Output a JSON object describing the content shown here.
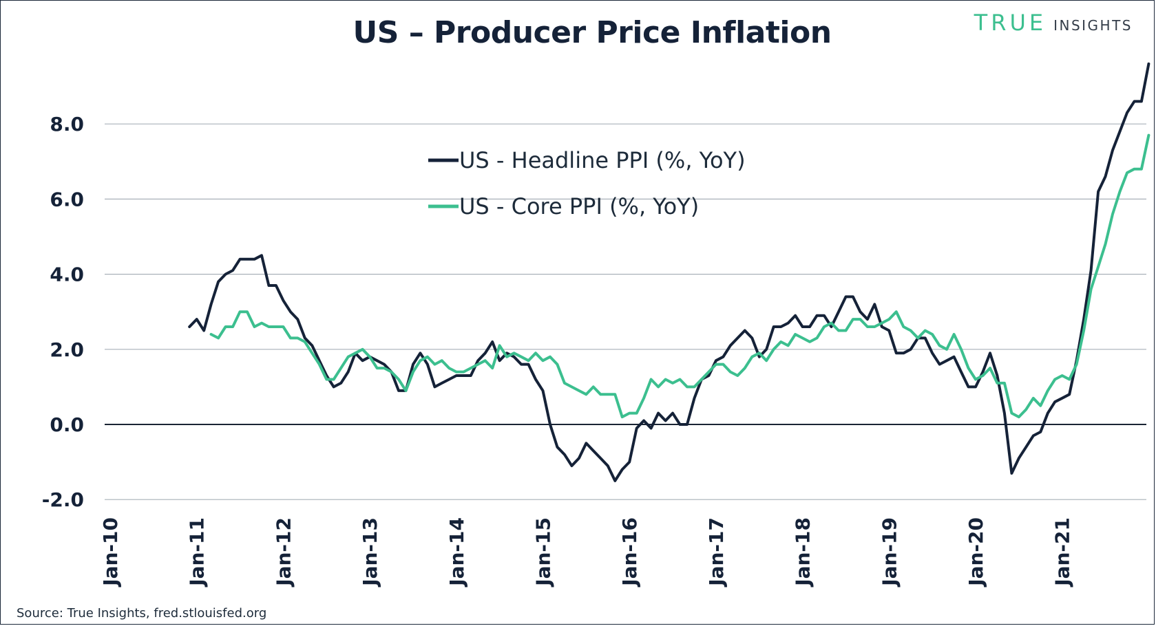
{
  "source": "Source: True Insights, fred.stlouisfed.org",
  "brand": {
    "mark": "TRUE",
    "word": "INSIGHTS",
    "accent": "#3cbf8f"
  },
  "chart_data": {
    "type": "line",
    "title": "US – Producer Price Inflation",
    "xlabel": "",
    "ylabel": "",
    "ylim": [
      -2.0,
      9.6
    ],
    "yticks": [
      -2.0,
      0.0,
      2.0,
      4.0,
      6.0,
      8.0
    ],
    "ytick_labels": [
      "-2.0",
      "0.0",
      "2.0",
      "4.0",
      "6.0",
      "8.0"
    ],
    "xticks": [
      "Jan-10",
      "Jan-11",
      "Jan-12",
      "Jan-13",
      "Jan-14",
      "Jan-15",
      "Jan-16",
      "Jan-17",
      "Jan-18",
      "Jan-19",
      "Jan-20",
      "Jan-21"
    ],
    "x_start": "Jan-10",
    "x_unit": "months since Jan-10",
    "grid": true,
    "legend_position": "top-center",
    "series": [
      {
        "name": "US - Headline PPI (%, YoY)",
        "color": "#152238",
        "x_start_month": 11,
        "values": [
          2.6,
          2.8,
          2.5,
          3.2,
          3.8,
          4.0,
          4.1,
          4.4,
          4.4,
          4.4,
          4.5,
          3.7,
          3.7,
          3.3,
          3.0,
          2.8,
          2.3,
          2.1,
          1.7,
          1.3,
          1.0,
          1.1,
          1.4,
          1.9,
          1.7,
          1.8,
          1.7,
          1.6,
          1.4,
          0.9,
          0.9,
          1.6,
          1.9,
          1.6,
          1.0,
          1.1,
          1.2,
          1.3,
          1.3,
          1.3,
          1.7,
          1.9,
          2.2,
          1.7,
          1.9,
          1.8,
          1.6,
          1.6,
          1.2,
          0.9,
          0.0,
          -0.6,
          -0.8,
          -1.1,
          -0.9,
          -0.5,
          -0.7,
          -0.9,
          -1.1,
          -1.5,
          -1.2,
          -1.0,
          -0.1,
          0.1,
          -0.1,
          0.3,
          0.1,
          0.3,
          0.0,
          0.0,
          0.7,
          1.2,
          1.3,
          1.7,
          1.8,
          2.1,
          2.3,
          2.5,
          2.3,
          1.8,
          2.0,
          2.6,
          2.6,
          2.7,
          2.9,
          2.6,
          2.6,
          2.9,
          2.9,
          2.6,
          3.0,
          3.4,
          3.4,
          3.0,
          2.8,
          3.2,
          2.6,
          2.5,
          1.9,
          1.9,
          2.0,
          2.3,
          2.3,
          1.9,
          1.6,
          1.7,
          1.8,
          1.4,
          1.0,
          1.0,
          1.4,
          1.9,
          1.3,
          0.3,
          -1.3,
          -0.9,
          -0.6,
          -0.3,
          -0.2,
          0.3,
          0.6,
          0.7,
          0.8,
          1.7,
          2.8,
          4.1,
          6.2,
          6.6,
          7.3,
          7.8,
          8.3,
          8.6,
          8.6,
          9.6
        ]
      },
      {
        "name": "US - Core PPI (%, YoY)",
        "color": "#3cbf8f",
        "x_start_month": 14,
        "values": [
          2.4,
          2.3,
          2.6,
          2.6,
          3.0,
          3.0,
          2.6,
          2.7,
          2.6,
          2.6,
          2.6,
          2.3,
          2.3,
          2.2,
          1.9,
          1.6,
          1.2,
          1.2,
          1.5,
          1.8,
          1.9,
          2.0,
          1.8,
          1.5,
          1.5,
          1.4,
          1.2,
          0.9,
          1.4,
          1.7,
          1.8,
          1.6,
          1.7,
          1.5,
          1.4,
          1.4,
          1.5,
          1.6,
          1.7,
          1.5,
          2.1,
          1.8,
          1.9,
          1.8,
          1.7,
          1.9,
          1.7,
          1.8,
          1.6,
          1.1,
          1.0,
          0.9,
          0.8,
          1.0,
          0.8,
          0.8,
          0.8,
          0.2,
          0.3,
          0.3,
          0.7,
          1.2,
          1.0,
          1.2,
          1.1,
          1.2,
          1.0,
          1.0,
          1.2,
          1.4,
          1.6,
          1.6,
          1.4,
          1.3,
          1.5,
          1.8,
          1.9,
          1.7,
          2.0,
          2.2,
          2.1,
          2.4,
          2.3,
          2.2,
          2.3,
          2.6,
          2.7,
          2.5,
          2.5,
          2.8,
          2.8,
          2.6,
          2.6,
          2.7,
          2.8,
          3.0,
          2.6,
          2.5,
          2.3,
          2.5,
          2.4,
          2.1,
          2.0,
          2.4,
          2.0,
          1.5,
          1.2,
          1.3,
          1.5,
          1.1,
          1.1,
          0.3,
          0.2,
          0.4,
          0.7,
          0.5,
          0.9,
          1.2,
          1.3,
          1.2,
          1.6,
          2.5,
          3.6,
          4.2,
          4.8,
          5.6,
          6.2,
          6.7,
          6.8,
          6.8,
          7.7
        ]
      }
    ]
  }
}
